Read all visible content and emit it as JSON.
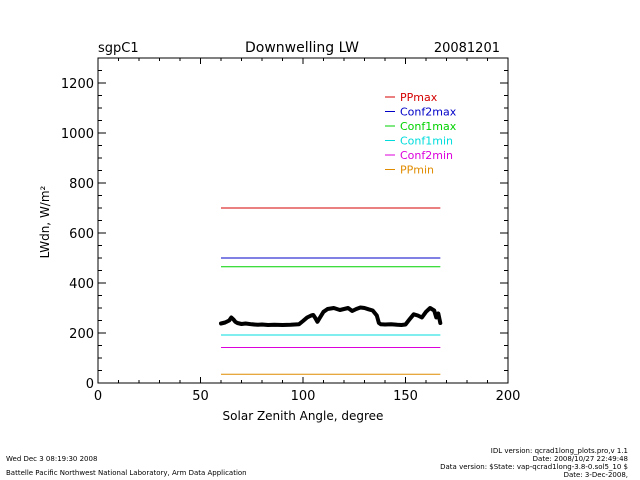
{
  "header": {
    "site": "sgpC1",
    "title": "Downwelling LW",
    "date": "20081201"
  },
  "footer": {
    "timestamp": "Wed Dec  3 08:19:30 2008",
    "org": "Battelle Pacific Northwest National Laboratory, Arm Data Application",
    "idl_version": "IDL version: qcrad1long_plots.pro,v 1.1",
    "idl_date": "Date: 2008/10/27 22:49:48",
    "data_version": "Data version: $State: vap-qcrad1long-3.8-0.sol5_10 $",
    "data_date": "Date: 3-Dec-2008,"
  },
  "chart_data": {
    "type": "line",
    "title": "Downwelling LW",
    "xlabel": "Solar Zenith Angle, degree",
    "ylabel": "LWdn, W/m²",
    "xlim": [
      0,
      200
    ],
    "ylim": [
      0,
      1300
    ],
    "xticks": [
      0,
      50,
      100,
      150,
      200
    ],
    "yticks": [
      0,
      200,
      400,
      600,
      800,
      1000,
      1200
    ],
    "legend_position": "top-right",
    "limit_lines": [
      {
        "name": "PPmax",
        "color": "#d40000",
        "y": 700,
        "x": [
          60,
          167
        ]
      },
      {
        "name": "Conf2max",
        "color": "#0000c8",
        "y": 500,
        "x": [
          60,
          167
        ]
      },
      {
        "name": "Conf1max",
        "color": "#00d200",
        "y": 465,
        "x": [
          60,
          167
        ]
      },
      {
        "name": "Conf1min",
        "color": "#00dcdc",
        "y": 192,
        "x": [
          60,
          167
        ]
      },
      {
        "name": "Conf2min",
        "color": "#dc00dc",
        "y": 142,
        "x": [
          60,
          167
        ]
      },
      {
        "name": "PPmin",
        "color": "#e08c00",
        "y": 35,
        "x": [
          60,
          167
        ]
      }
    ],
    "measured": {
      "color": "#000000",
      "x": [
        60,
        62,
        64,
        65,
        66,
        67,
        68,
        70,
        72,
        75,
        78,
        80,
        83,
        86,
        90,
        94,
        98,
        100,
        102,
        104,
        105,
        106,
        107,
        108,
        110,
        112,
        115,
        118,
        120,
        122,
        124,
        126,
        128,
        130,
        132,
        134,
        136,
        137,
        138,
        140,
        143,
        146,
        148,
        150,
        152,
        154,
        156,
        158,
        160,
        162,
        164,
        165,
        166,
        167
      ],
      "y": [
        238,
        242,
        250,
        262,
        255,
        245,
        240,
        236,
        238,
        235,
        233,
        234,
        232,
        233,
        232,
        233,
        235,
        248,
        262,
        270,
        272,
        260,
        245,
        258,
        285,
        296,
        300,
        292,
        296,
        300,
        288,
        296,
        302,
        300,
        295,
        290,
        270,
        240,
        235,
        234,
        235,
        233,
        232,
        234,
        255,
        275,
        270,
        262,
        285,
        300,
        290,
        262,
        278,
        240
      ]
    }
  }
}
